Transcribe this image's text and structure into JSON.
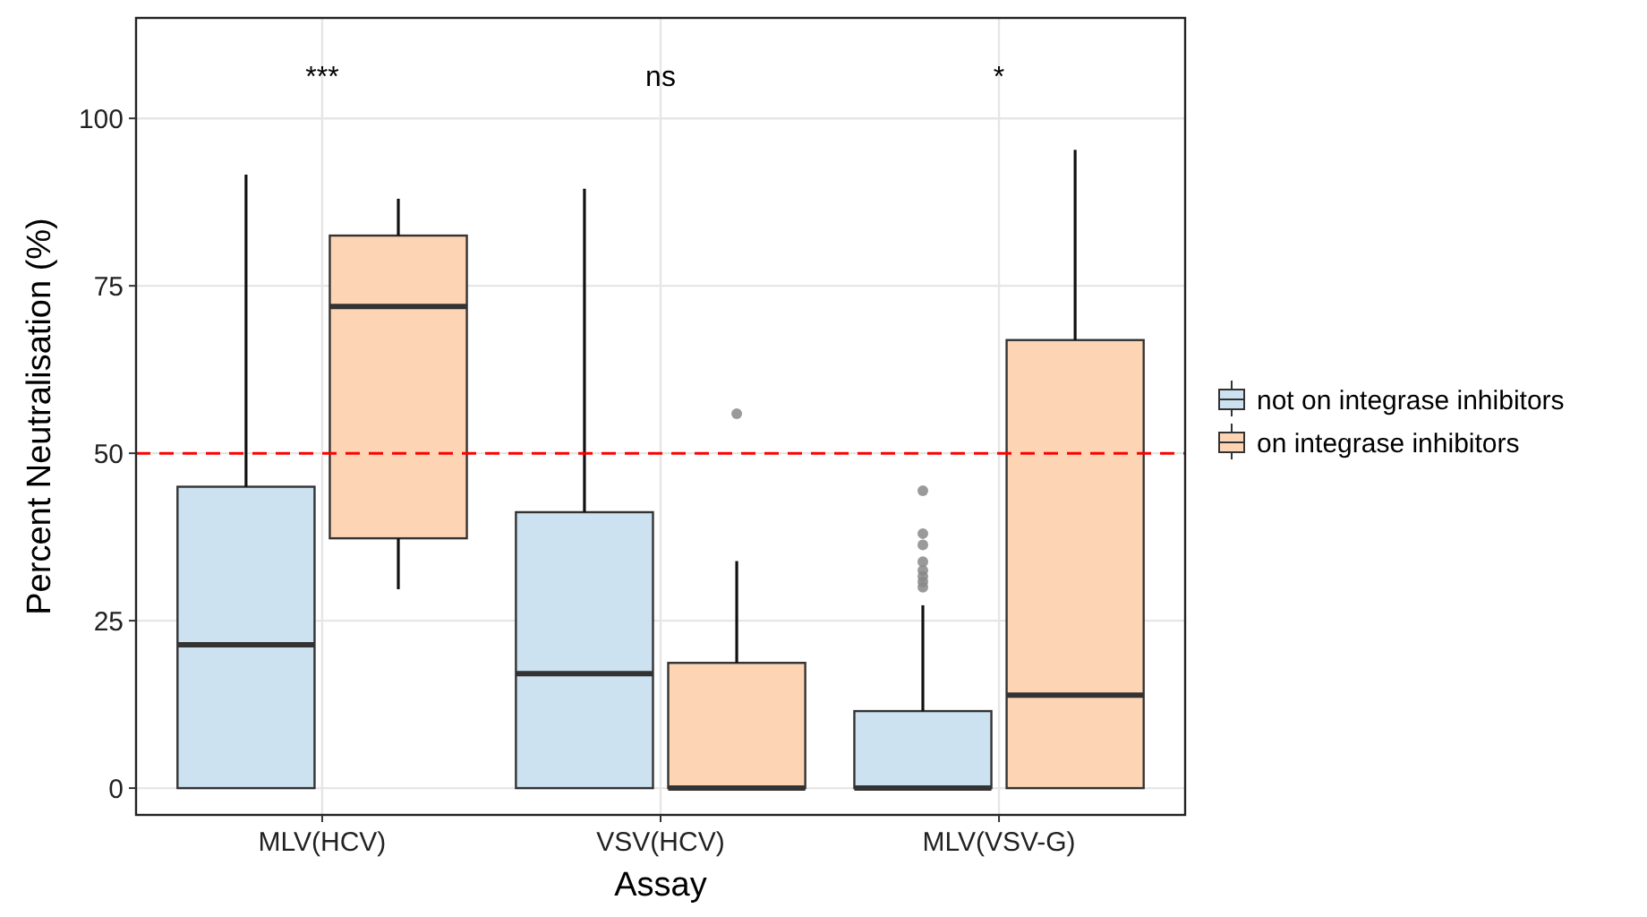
{
  "chart_data": {
    "type": "box",
    "xlabel": "Assay",
    "ylabel": "Percent Neutralisation (%)",
    "categories": [
      "MLV(HCV)",
      "VSV(HCV)",
      "MLV(VSV-G)"
    ],
    "ylim": [
      -4,
      115
    ],
    "yticks": [
      0,
      25,
      50,
      75,
      100
    ],
    "grid": true,
    "legend": "right",
    "series": [
      {
        "name": "not on integrase inhibitors",
        "color": "#cce2f0",
        "boxes": [
          {
            "low": 0,
            "q1": 0,
            "median": 21.4,
            "q3": 45.0,
            "high": 91.6
          },
          {
            "low": 0,
            "q1": 0,
            "median": 17.1,
            "q3": 41.2,
            "high": 89.5
          },
          {
            "low": 0,
            "q1": 0,
            "median": 0,
            "q3": 11.5,
            "high": 27.3,
            "outliers": [
              44.4,
              38.0,
              36.3,
              33.8,
              32.5,
              31.6,
              30.8,
              30.0
            ]
          }
        ]
      },
      {
        "name": "on integrase inhibitors",
        "color": "#fdd5b4",
        "boxes": [
          {
            "low": 29.7,
            "q1": 37.3,
            "median": 71.9,
            "q3": 82.5,
            "high": 88.0
          },
          {
            "low": 0,
            "q1": 0,
            "median": 0,
            "q3": 18.7,
            "high": 33.9,
            "outliers": [
              55.9
            ]
          },
          {
            "low": 0,
            "q1": 0,
            "median": 13.9,
            "q3": 66.9,
            "high": 95.3
          }
        ]
      }
    ],
    "ref_lines": [
      {
        "axis": "y",
        "value": 50,
        "color": "#ff0000",
        "line_style": "dashed"
      }
    ],
    "annotations": [
      "***",
      "ns",
      "*"
    ]
  }
}
